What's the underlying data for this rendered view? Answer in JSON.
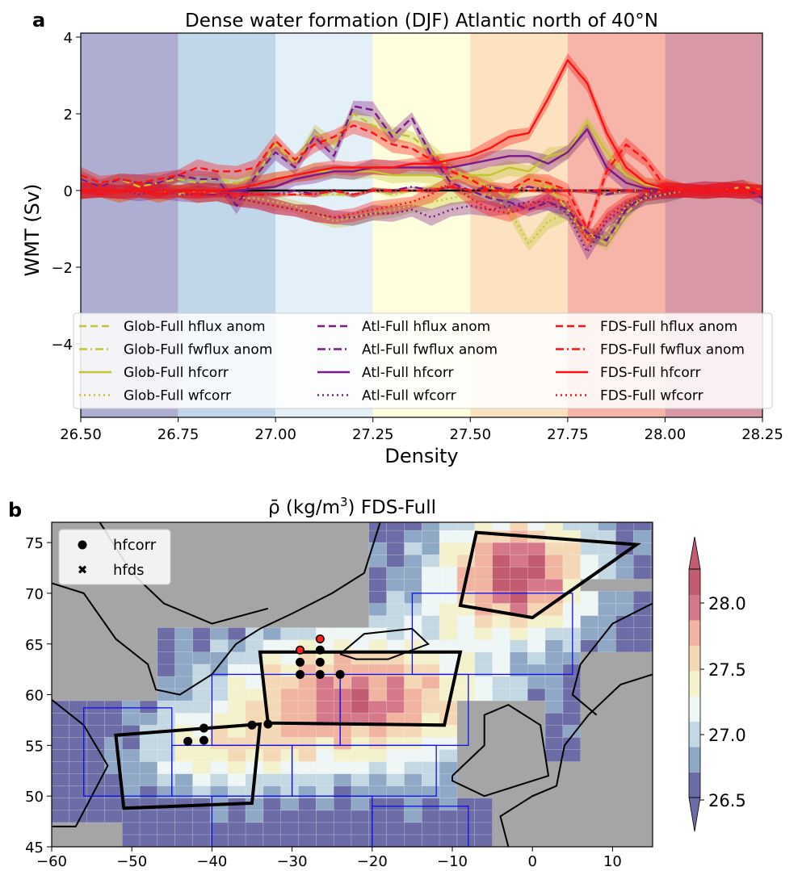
{
  "panel_a": {
    "panel_label": "a",
    "title": "Dense water formation (DJF) Atlantic north of 40°N",
    "xlabel": "Density",
    "ylabel": "WMT (Sv)",
    "xticks": [
      "26.50",
      "26.75",
      "27.00",
      "27.25",
      "27.50",
      "27.75",
      "28.00",
      "28.25"
    ],
    "yticks": [
      "−4",
      "−2",
      "0",
      "2",
      "4"
    ],
    "band_colors": [
      "#aeaed2",
      "#c2d6ea",
      "#e3f0f8",
      "#ffffdd",
      "#fce2c0",
      "#f6b5a8",
      "#d998a6"
    ],
    "band_edges": [
      26.5,
      26.75,
      27.0,
      27.25,
      27.5,
      27.75,
      28.0,
      28.25
    ],
    "legend": [
      {
        "label": "Glob-Full hflux anom",
        "color": "#c4c433",
        "dash": "dashed"
      },
      {
        "label": "Glob-Full fwflux anom",
        "color": "#c4c433",
        "dash": "dashdot"
      },
      {
        "label": "Glob-Full hfcorr",
        "color": "#c4c433",
        "dash": "solid"
      },
      {
        "label": "Glob-Full wfcorr",
        "color": "#c4c433",
        "dash": "dotted"
      },
      {
        "label": "Atl-Full hflux anom",
        "color": "#7b1a86",
        "dash": "dashed"
      },
      {
        "label": "Atl-Full fwflux anom",
        "color": "#7b1a86",
        "dash": "dashdot"
      },
      {
        "label": "Atl-Full hfcorr",
        "color": "#7b1a86",
        "dash": "solid"
      },
      {
        "label": "Atl-Full wfcorr",
        "color": "#7b1a86",
        "dash": "dotted"
      },
      {
        "label": "FDS-Full hflux anom",
        "color": "#ff1010",
        "dash": "dashed"
      },
      {
        "label": "FDS-Full fwflux anom",
        "color": "#ff1010",
        "dash": "dashdot"
      },
      {
        "label": "FDS-Full hfcorr",
        "color": "#ff1010",
        "dash": "solid"
      },
      {
        "label": "FDS-Full wfcorr",
        "color": "#ff1010",
        "dash": "dotted"
      }
    ]
  },
  "panel_b": {
    "panel_label": "b",
    "title_prefix": "ρ̄ (kg/m",
    "title_sup": "3",
    "title_suffix": ") FDS-Full",
    "xticks": [
      "−60",
      "−50",
      "−40",
      "−30",
      "−20",
      "−10",
      "0",
      "10"
    ],
    "yticks": [
      "45",
      "50",
      "55",
      "60",
      "65",
      "70",
      "75"
    ],
    "legend": [
      {
        "label": "hfcorr",
        "marker": "circle",
        "color": "#000000"
      },
      {
        "label": "hfds",
        "marker": "x",
        "color": "#ff0000"
      }
    ],
    "colorbar": {
      "ticks": [
        "26.5",
        "27.0",
        "27.5",
        "28.0"
      ],
      "colors": [
        "#6c6ca6",
        "#8ea8c6",
        "#c4d8e4",
        "#eef6f6",
        "#f4f2cc",
        "#f4d8b6",
        "#f0b4a0",
        "#d5788a",
        "#c25c70"
      ]
    }
  },
  "chart_data": [
    {
      "type": "line",
      "title": "Dense water formation (DJF) Atlantic north of 40°N",
      "xlabel": "Density",
      "ylabel": "WMT (Sv)",
      "xlim": [
        26.5,
        28.25
      ],
      "ylim": [
        -5.8,
        4.1
      ],
      "grid": false,
      "legend_position": "lower-center",
      "x": [
        26.5,
        26.55,
        26.6,
        26.65,
        26.7,
        26.75,
        26.8,
        26.85,
        26.9,
        26.95,
        27.0,
        27.05,
        27.1,
        27.15,
        27.2,
        27.25,
        27.3,
        27.35,
        27.4,
        27.45,
        27.5,
        27.55,
        27.6,
        27.65,
        27.7,
        27.75,
        27.8,
        27.85,
        27.9,
        27.95,
        28.0,
        28.05,
        28.1,
        28.15,
        28.2,
        28.25
      ],
      "series": [
        {
          "name": "Glob-Full hflux anom",
          "values": [
            0.3,
            0.1,
            0.3,
            0.1,
            0.2,
            0.3,
            0.2,
            0.3,
            0.2,
            0.4,
            1.2,
            0.7,
            1.5,
            1.2,
            2.0,
            1.7,
            1.5,
            1.4,
            1.0,
            0.6,
            0.3,
            0.1,
            -0.2,
            0.3,
            0.1,
            -0.5,
            -1.1,
            -1.4,
            -0.6,
            -0.1,
            0.0,
            0.0,
            0.0,
            0.0,
            0.1,
            0.0
          ]
        },
        {
          "name": "Glob-Full fwflux anom",
          "values": [
            0.0,
            -0.1,
            0.0,
            0.0,
            0.0,
            -0.1,
            0.0,
            -0.1,
            0.0,
            -0.1,
            -0.1,
            -0.1,
            -0.1,
            -0.1,
            -0.1,
            0.0,
            -0.1,
            0.0,
            0.1,
            0.1,
            0.0,
            0.1,
            0.0,
            0.0,
            0.1,
            0.0,
            0.0,
            -0.1,
            0.0,
            0.0,
            0.0,
            0.0,
            0.0,
            0.0,
            0.0,
            0.0
          ]
        },
        {
          "name": "Glob-Full hfcorr",
          "values": [
            0.0,
            0.0,
            0.0,
            0.0,
            0.0,
            0.0,
            0.0,
            0.0,
            0.05,
            0.15,
            0.3,
            0.4,
            0.5,
            0.5,
            0.5,
            0.5,
            0.4,
            0.4,
            0.4,
            0.3,
            0.4,
            0.4,
            0.6,
            0.5,
            0.9,
            1.0,
            1.8,
            1.0,
            0.4,
            0.15,
            0.05,
            0.0,
            0.0,
            0.0,
            0.0,
            0.0
          ]
        },
        {
          "name": "Glob-Full wfcorr",
          "values": [
            0.0,
            0.0,
            -0.1,
            0.0,
            -0.1,
            0.0,
            -0.1,
            -0.1,
            -0.2,
            -0.2,
            -0.3,
            -0.4,
            -0.6,
            -0.8,
            -0.7,
            -0.6,
            -0.5,
            -0.4,
            -0.3,
            -0.2,
            -0.1,
            -0.1,
            -0.5,
            -1.4,
            -0.8,
            -0.6,
            -1.2,
            -1.2,
            -0.4,
            -0.2,
            -0.1,
            0.0,
            0.0,
            0.0,
            0.0,
            0.0
          ]
        },
        {
          "name": "Atl-Full hflux anom",
          "values": [
            0.3,
            0.1,
            0.3,
            0.2,
            0.2,
            0.4,
            0.3,
            0.3,
            -0.4,
            0.4,
            1.0,
            0.6,
            1.4,
            0.9,
            2.2,
            2.1,
            1.4,
            1.9,
            0.9,
            0.2,
            0.0,
            -0.2,
            -0.3,
            -0.5,
            -0.3,
            -0.5,
            -1.1,
            -1.3,
            -0.5,
            -0.1,
            0.0,
            0.0,
            0.1,
            0.0,
            0.1,
            -0.2
          ]
        },
        {
          "name": "Atl-Full fwflux anom",
          "values": [
            0.0,
            -0.1,
            0.0,
            0.0,
            -0.1,
            0.0,
            -0.1,
            -0.1,
            0.0,
            -0.1,
            -0.1,
            0.0,
            -0.1,
            0.0,
            -0.1,
            0.0,
            0.0,
            0.1,
            0.0,
            0.1,
            0.0,
            0.1,
            0.0,
            0.1,
            0.0,
            0.0,
            0.0,
            -0.1,
            0.0,
            0.0,
            0.0,
            0.0,
            0.0,
            0.0,
            0.0,
            0.0
          ]
        },
        {
          "name": "Atl-Full hfcorr",
          "values": [
            0.0,
            0.0,
            0.0,
            0.0,
            0.0,
            0.0,
            0.0,
            0.0,
            0.0,
            0.05,
            0.1,
            0.3,
            0.4,
            0.5,
            0.5,
            0.6,
            0.6,
            0.6,
            0.6,
            0.6,
            0.7,
            0.8,
            0.9,
            0.9,
            0.7,
            1.0,
            1.6,
            0.6,
            0.2,
            0.05,
            0.0,
            0.0,
            0.0,
            0.0,
            0.0,
            0.0
          ]
        },
        {
          "name": "Atl-Full wfcorr",
          "values": [
            0.0,
            0.0,
            0.0,
            -0.1,
            0.0,
            -0.1,
            -0.1,
            -0.1,
            -0.2,
            -0.3,
            -0.4,
            -0.5,
            -0.6,
            -0.7,
            -0.7,
            -0.6,
            -0.6,
            -0.5,
            -0.7,
            -0.5,
            -0.4,
            -0.5,
            -0.4,
            -0.3,
            -0.3,
            -0.6,
            -1.6,
            -0.8,
            -0.4,
            -0.2,
            -0.1,
            0.0,
            0.0,
            0.0,
            0.0,
            0.0
          ]
        },
        {
          "name": "FDS-Full hflux anom",
          "values": [
            0.4,
            0.2,
            0.3,
            0.2,
            0.3,
            0.4,
            0.6,
            0.5,
            0.5,
            0.6,
            1.3,
            0.8,
            1.2,
            1.4,
            1.7,
            1.5,
            1.2,
            1.1,
            0.8,
            0.5,
            0.3,
            0.0,
            0.0,
            0.3,
            0.2,
            0.0,
            -1.0,
            0.5,
            1.2,
            0.8,
            0.1,
            0.0,
            0.1,
            0.0,
            0.1,
            0.0
          ]
        },
        {
          "name": "FDS-Full fwflux anom",
          "values": [
            0.0,
            -0.1,
            0.0,
            0.0,
            -0.1,
            0.0,
            -0.1,
            0.0,
            -0.1,
            -0.1,
            -0.1,
            -0.1,
            -0.1,
            0.0,
            -0.1,
            0.0,
            0.0,
            0.0,
            0.0,
            0.1,
            0.0,
            0.0,
            0.0,
            0.0,
            0.0,
            0.0,
            0.0,
            0.0,
            0.0,
            0.0,
            0.0,
            0.0,
            0.0,
            0.0,
            0.0,
            0.0
          ]
        },
        {
          "name": "FDS-Full hfcorr",
          "values": [
            0.0,
            0.0,
            0.0,
            0.0,
            0.0,
            0.0,
            0.0,
            0.0,
            0.05,
            0.15,
            0.3,
            0.4,
            0.5,
            0.6,
            0.6,
            0.6,
            0.6,
            0.7,
            0.7,
            0.8,
            0.9,
            1.1,
            1.4,
            1.5,
            2.4,
            3.4,
            2.8,
            1.5,
            0.6,
            0.2,
            0.05,
            0.0,
            0.0,
            0.0,
            0.0,
            0.0
          ]
        },
        {
          "name": "FDS-Full wfcorr",
          "values": [
            0.0,
            0.0,
            -0.1,
            0.0,
            -0.1,
            0.0,
            -0.1,
            -0.1,
            -0.2,
            -0.3,
            -0.4,
            -0.5,
            -0.6,
            -0.7,
            -0.6,
            -0.5,
            -0.4,
            -0.3,
            -0.1,
            0.2,
            -0.2,
            -0.5,
            -0.6,
            -0.4,
            -0.2,
            -0.3,
            -1.3,
            -0.7,
            -0.3,
            -0.1,
            0.0,
            0.0,
            0.0,
            0.0,
            0.0,
            0.0
          ]
        }
      ]
    },
    {
      "type": "heatmap",
      "title": "ρ̄ (kg/m3) FDS-Full",
      "xlim": [
        -60,
        15
      ],
      "ylim": [
        45,
        77
      ],
      "colorbar_range": [
        26.3,
        28.3
      ],
      "colorbar_ticks": [
        26.5,
        27.0,
        27.5,
        28.0
      ],
      "black_boxes": [
        {
          "lon": [
            -52,
            -34,
            -35,
            -51
          ],
          "lat": [
            56,
            57.1,
            49.3,
            48.8
          ]
        },
        {
          "lon": [
            -34,
            -9,
            -11,
            -33
          ],
          "lat": [
            64.2,
            64.2,
            57,
            57.2
          ]
        },
        {
          "lon": [
            -7,
            13,
            0,
            -9
          ],
          "lat": [
            76,
            74.8,
            67.6,
            68.8
          ]
        }
      ],
      "blue_boxes": [
        {
          "lon": [
            -56,
            -45
          ],
          "lat": [
            50,
            58.7
          ]
        },
        {
          "lon": [
            -45,
            -30
          ],
          "lat": [
            50,
            55
          ]
        },
        {
          "lon": [
            -30,
            -12
          ],
          "lat": [
            50,
            55
          ]
        },
        {
          "lon": [
            -40,
            -24
          ],
          "lat": [
            55,
            62
          ]
        },
        {
          "lon": [
            -24,
            -8
          ],
          "lat": [
            55,
            62
          ]
        },
        {
          "lon": [
            -15,
            5
          ],
          "lat": [
            62,
            70
          ]
        },
        {
          "lon": [
            -40,
            -20
          ],
          "lat": [
            45,
            50
          ]
        },
        {
          "lon": [
            -20,
            -8
          ],
          "lat": [
            45,
            49
          ]
        }
      ],
      "hfcorr_points": [
        {
          "lon": -43,
          "lat": 55.4
        },
        {
          "lon": -41,
          "lat": 55.5
        },
        {
          "lon": -41,
          "lat": 56.7
        },
        {
          "lon": -35,
          "lat": 57
        },
        {
          "lon": -33,
          "lat": 57.1
        },
        {
          "lon": -29,
          "lat": 62
        },
        {
          "lon": -29,
          "lat": 63.2
        },
        {
          "lon": -26.5,
          "lat": 62
        },
        {
          "lon": -26.5,
          "lat": 63.2
        },
        {
          "lon": -26.5,
          "lat": 64.4
        },
        {
          "lon": -24,
          "lat": 62
        }
      ],
      "hfds_points": [
        {
          "lon": -29,
          "lat": 64.4
        },
        {
          "lon": -26.5,
          "lat": 65.5
        }
      ]
    }
  ]
}
